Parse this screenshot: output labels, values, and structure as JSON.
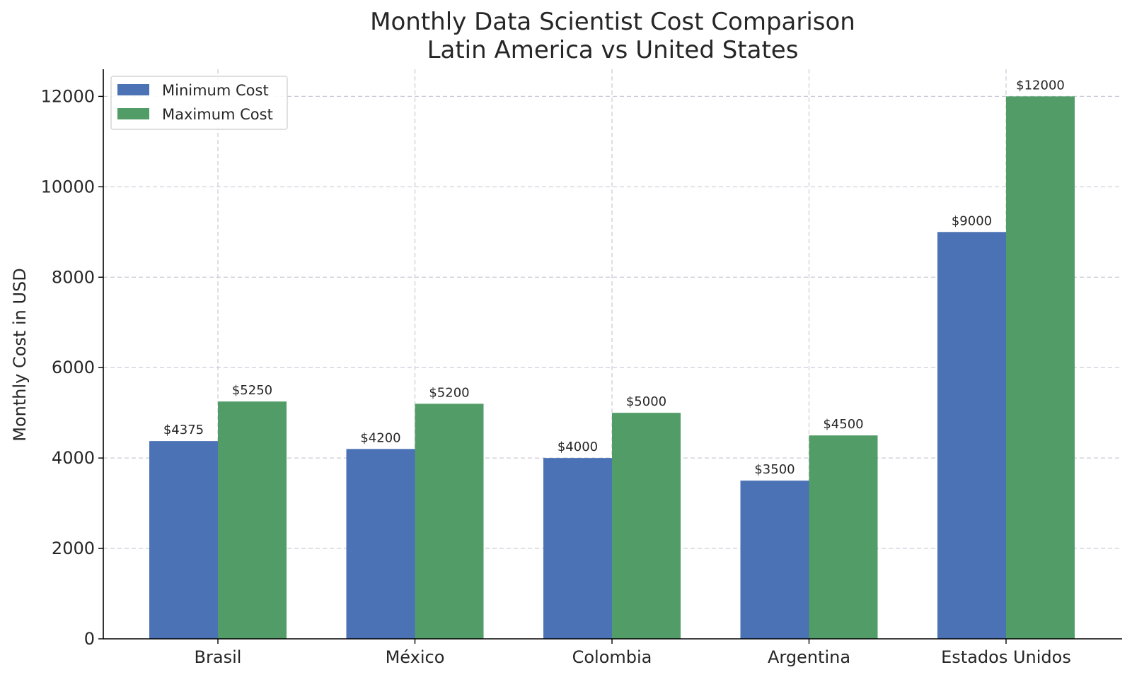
{
  "chart_data": {
    "type": "bar",
    "title": "Monthly Data Scientist Cost Comparison",
    "subtitle": "Latin America vs United States",
    "xlabel": "",
    "ylabel": "Monthly Cost in USD",
    "categories": [
      "Brasil",
      "México",
      "Colombia",
      "Argentina",
      "Estados Unidos"
    ],
    "series": [
      {
        "name": "Minimum Cost",
        "color": "#4a72b5",
        "values": [
          4375,
          4200,
          4000,
          3500,
          9000
        ],
        "labels": [
          "$4375",
          "$4200",
          "$4000",
          "$3500",
          "$9000"
        ]
      },
      {
        "name": "Maximum Cost",
        "color": "#529c67",
        "values": [
          5250,
          5200,
          5000,
          4500,
          12000
        ],
        "labels": [
          "$5250",
          "$5200",
          "$5000",
          "$4500",
          "$12000"
        ]
      }
    ],
    "ylim": [
      0,
      12600
    ],
    "yticks": [
      "0",
      "2000",
      "4000",
      "6000",
      "8000",
      "10000",
      "12000"
    ],
    "grid": true,
    "legend_position": "top-left"
  }
}
